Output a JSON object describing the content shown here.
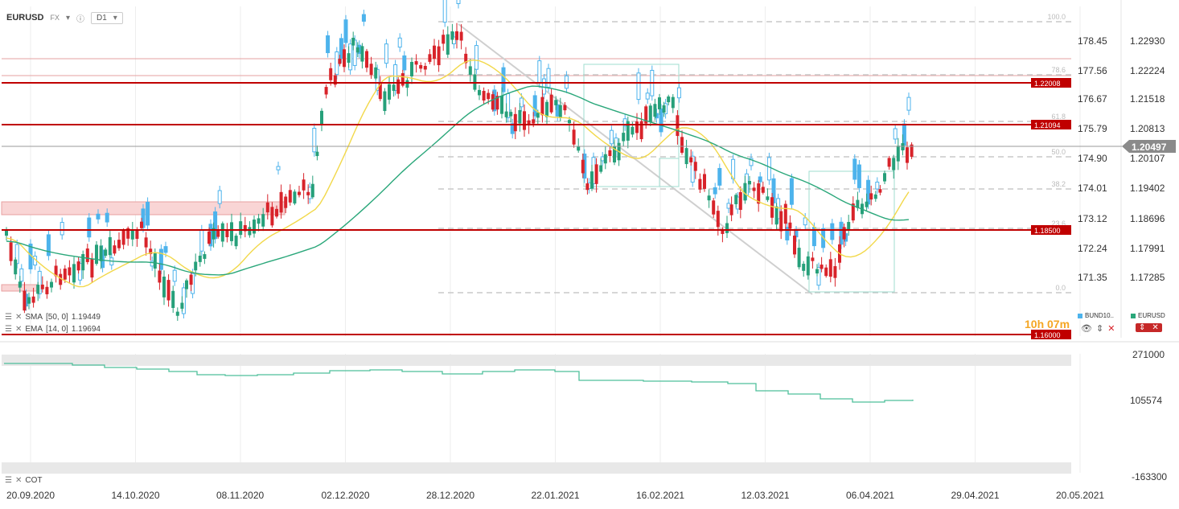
{
  "header": {
    "symbol": "EURUSD",
    "exchange": "FX",
    "timeframe": "D1"
  },
  "colors": {
    "up": "#26a07a",
    "down": "#d8232a",
    "bund": "#4db3ec",
    "ma50": "#2aa77a",
    "ema14": "#f2d84a",
    "level": "#c00000",
    "price": "#8a8a8a"
  },
  "chart_data": {
    "type": "candlestick",
    "x_labels": [
      "20.09.2020",
      "14.10.2020",
      "08.11.2020",
      "02.12.2020",
      "28.12.2020",
      "22.01.2021",
      "16.02.2021",
      "12.03.2021",
      "06.04.2021",
      "29.04.2021",
      "20.05.2021"
    ],
    "right_axis_bund": [
      "178.45",
      "177.56",
      "176.67",
      "175.79",
      "174.90",
      "174.01",
      "173.12",
      "172.24",
      "171.35"
    ],
    "right_axis_eurusd": [
      "1.22930",
      "1.22224",
      "1.21518",
      "1.20813",
      "1.20107",
      "1.19402",
      "1.18696",
      "1.17991",
      "1.17285"
    ],
    "current_price": "1.20497",
    "horizontal_levels": [
      "1.22008",
      "1.21094",
      "1.18500",
      "1.16000"
    ],
    "fib_levels": [
      "100.0",
      "78.6",
      "61.8",
      "50.0",
      "38.2",
      "23.6",
      "0.0"
    ],
    "indicators": [
      {
        "name": "SMA",
        "params": "[50, 0]",
        "value": "1.19449"
      },
      {
        "name": "EMA",
        "params": "[14, 0]",
        "value": "1.19694"
      }
    ],
    "legend": [
      "BUND10..",
      "EURUSD"
    ],
    "countdown": "10h 07m",
    "lower_pane": {
      "name": "COT",
      "axis": [
        "271000",
        "105574",
        "-163300"
      ]
    }
  }
}
